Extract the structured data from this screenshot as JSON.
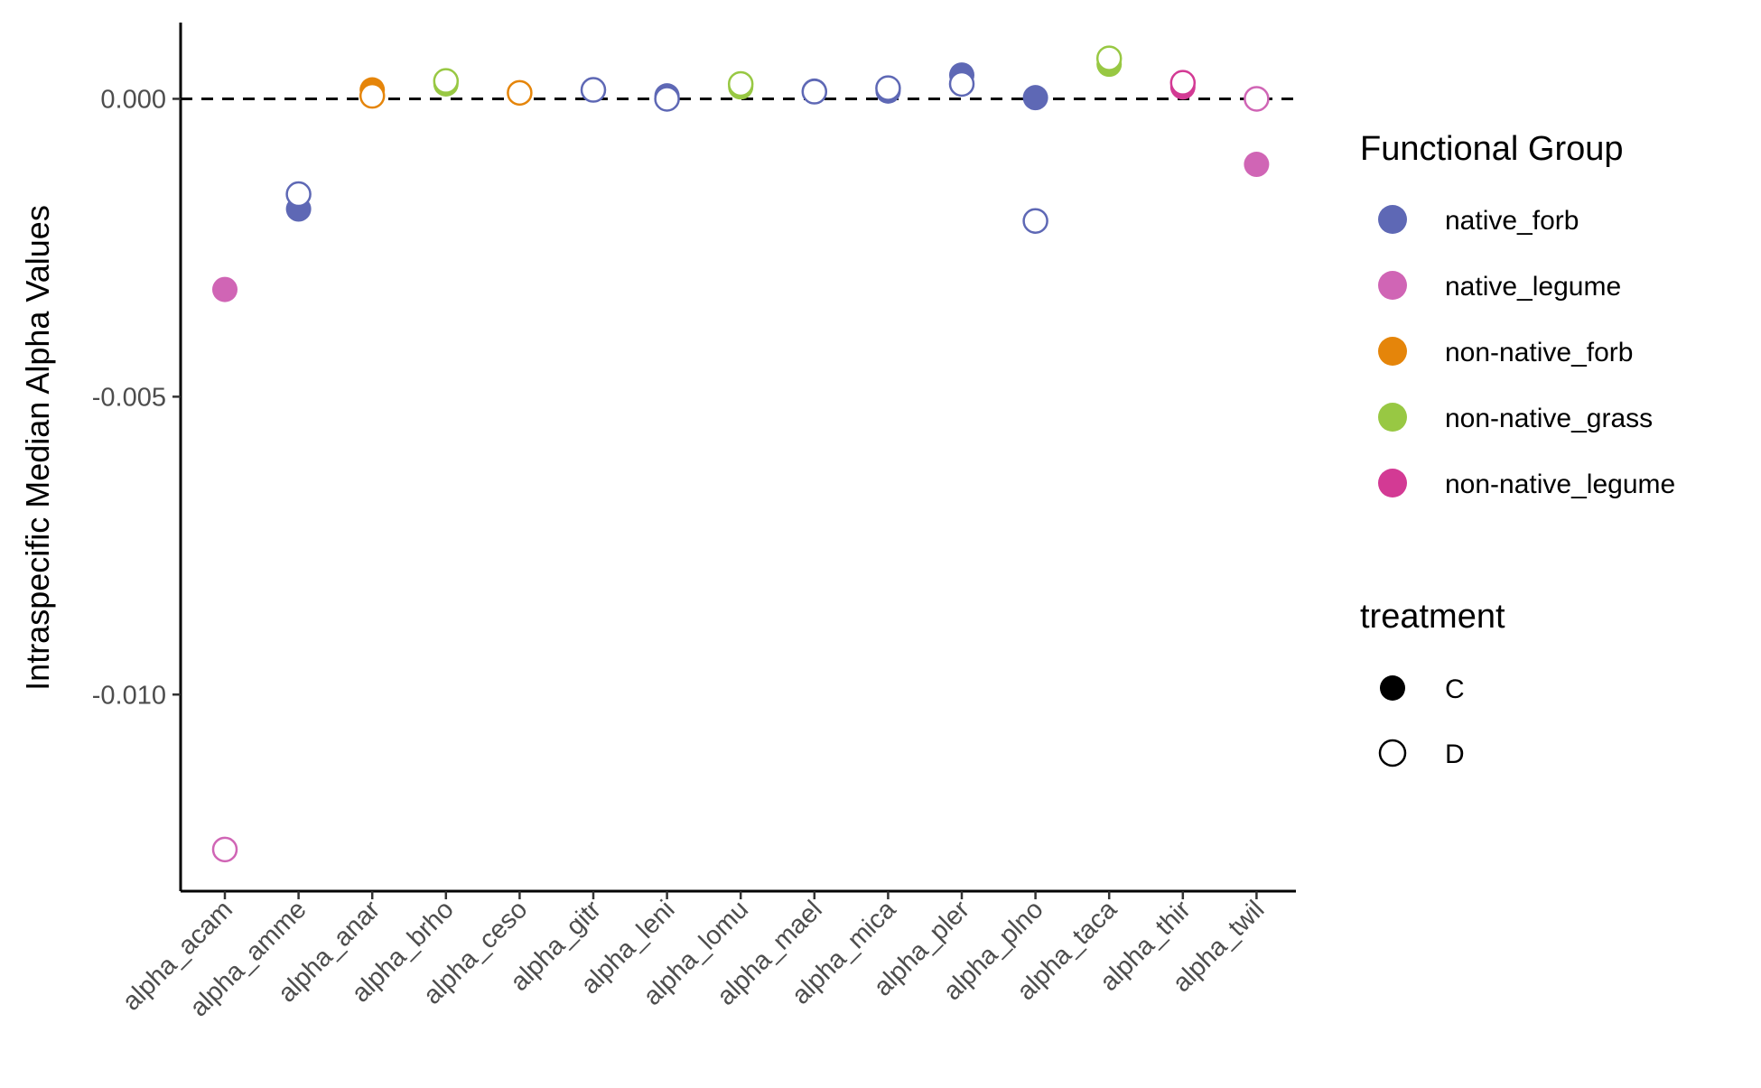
{
  "chart_data": {
    "type": "scatter",
    "title": "",
    "xlabel": "",
    "ylabel": "Intraspecific Median Alpha Values",
    "ylim": [
      -0.0133,
      0.00128
    ],
    "y_ticks": [
      {
        "value": 0.0,
        "label": "0.000"
      },
      {
        "value": -0.005,
        "label": "-0.005"
      },
      {
        "value": -0.01,
        "label": "-0.010"
      }
    ],
    "reference_line": {
      "y": 0,
      "style": "dashed",
      "color": "#000000"
    },
    "grid": false,
    "legend_position": "right",
    "categories": [
      "alpha_acam",
      "alpha_amme",
      "alpha_anar",
      "alpha_brho",
      "alpha_ceso",
      "alpha_gitr",
      "alpha_leni",
      "alpha_lomu",
      "alpha_mael",
      "alpha_mica",
      "alpha_pler",
      "alpha_plno",
      "alpha_taca",
      "alpha_thir",
      "alpha_twil"
    ],
    "functional_group": [
      "native_legume",
      "native_forb",
      "non-native_forb",
      "non-native_grass",
      "non-native_forb",
      "native_forb",
      "native_forb",
      "non-native_grass",
      "native_forb",
      "native_forb",
      "native_forb",
      "native_forb",
      "non-native_grass",
      "non-native_legume",
      "native_legume"
    ],
    "series": [
      {
        "name": "C",
        "marker": "filled",
        "values": [
          -0.0032,
          -0.00185,
          0.00015,
          0.00025,
          0.0001,
          0.00015,
          5e-05,
          0.0002,
          0.00013,
          0.00013,
          0.0004,
          2e-05,
          0.00058,
          0.0002,
          -0.0011
        ]
      },
      {
        "name": "D",
        "marker": "open",
        "values": [
          -0.0126,
          -0.0016,
          5e-05,
          0.0003,
          0.0001,
          0.00015,
          0.0,
          0.00025,
          0.00012,
          0.00018,
          0.00025,
          -0.00205,
          0.00068,
          0.00027,
          0.0
        ]
      }
    ],
    "legends": [
      {
        "title": "Functional Group",
        "entries": [
          {
            "label": "native_forb",
            "color": "#5E68B5"
          },
          {
            "label": "native_legume",
            "color": "#D065B5"
          },
          {
            "label": "non-native_forb",
            "color": "#E5850A"
          },
          {
            "label": "non-native_grass",
            "color": "#98C843"
          },
          {
            "label": "non-native_legume",
            "color": "#D33A94"
          }
        ]
      },
      {
        "title": "treatment",
        "entries": [
          {
            "label": "C",
            "marker": "filled"
          },
          {
            "label": "D",
            "marker": "open"
          }
        ]
      }
    ]
  }
}
